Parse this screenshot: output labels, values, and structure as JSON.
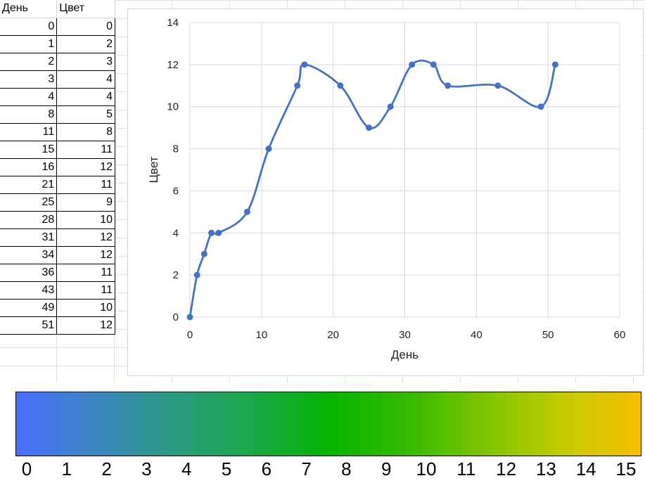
{
  "sheet": {
    "headers": [
      "День",
      "Цвет"
    ],
    "rows": [
      [
        0,
        0
      ],
      [
        1,
        2
      ],
      [
        2,
        3
      ],
      [
        3,
        4
      ],
      [
        4,
        4
      ],
      [
        8,
        5
      ],
      [
        11,
        8
      ],
      [
        15,
        11
      ],
      [
        16,
        12
      ],
      [
        21,
        11
      ],
      [
        25,
        9
      ],
      [
        28,
        10
      ],
      [
        31,
        12
      ],
      [
        34,
        12
      ],
      [
        36,
        11
      ],
      [
        43,
        11
      ],
      [
        49,
        10
      ],
      [
        51,
        12
      ]
    ]
  },
  "chart_data": {
    "type": "scatter",
    "series": [
      {
        "x": [
          0,
          1,
          2,
          3,
          4,
          8,
          11,
          15,
          16,
          21,
          25,
          28,
          31,
          34,
          36,
          43,
          49,
          51
        ],
        "y": [
          0,
          2,
          3,
          4,
          4,
          5,
          8,
          11,
          12,
          11,
          9,
          10,
          12,
          12,
          11,
          11,
          10,
          12
        ],
        "color": "#4472C4",
        "smooth": true
      }
    ],
    "xlabel": "День",
    "ylabel": "Цвет",
    "xlim": [
      0,
      60
    ],
    "ylim": [
      0,
      14
    ],
    "xticks": [
      "0",
      "10",
      "20",
      "30",
      "40",
      "50",
      "60"
    ],
    "yticks": [
      "0",
      "2",
      "4",
      "6",
      "8",
      "10",
      "12",
      "14"
    ],
    "grid": true
  },
  "colorbar": {
    "labels": [
      "0",
      "1",
      "2",
      "3",
      "4",
      "5",
      "6",
      "7",
      "8",
      "9",
      "10",
      "11",
      "12",
      "13",
      "14",
      "15"
    ],
    "colors": [
      "#4a6cff",
      "#3b86c0",
      "#2a9a80",
      "#1aa84a",
      "#06b300",
      "#34ba00",
      "#7ec400",
      "#c4cc00",
      "#f7be00"
    ]
  }
}
